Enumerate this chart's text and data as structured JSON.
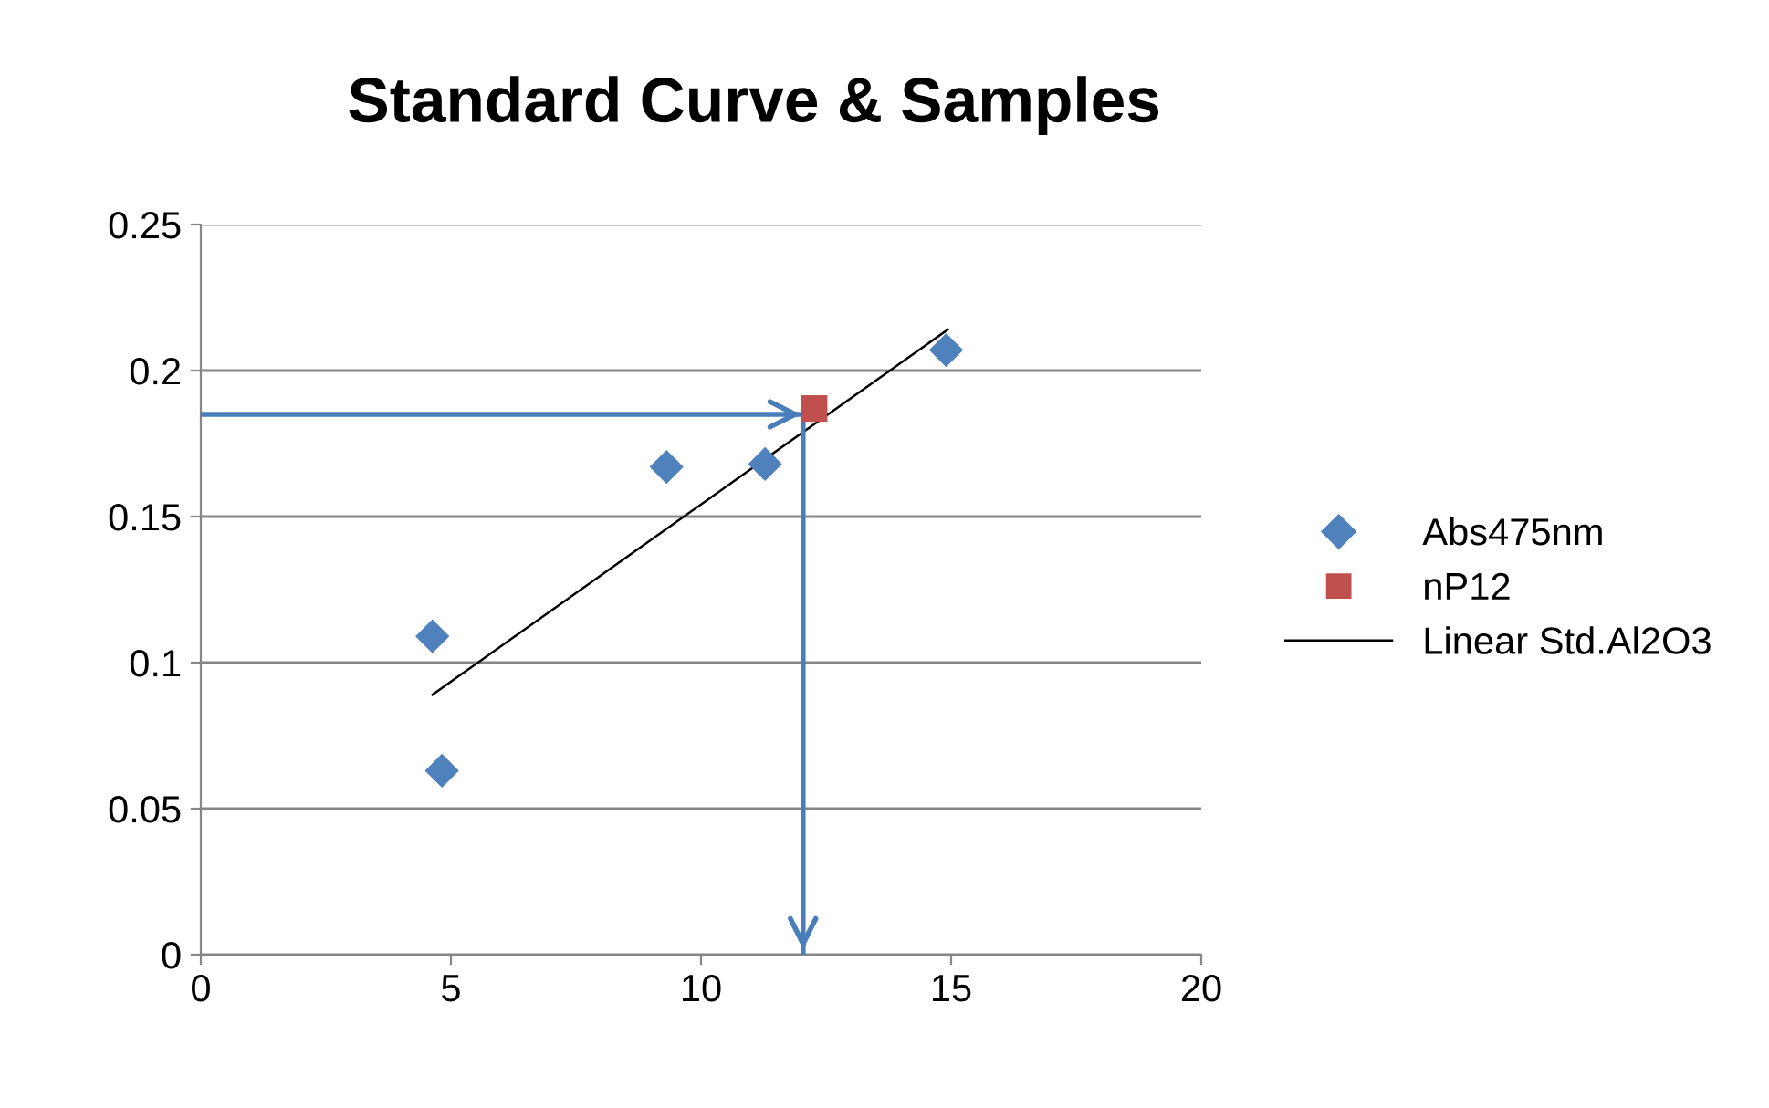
{
  "chart_data": {
    "type": "scatter",
    "title": "Standard Curve & Samples",
    "series": [
      {
        "name": "Abs475nm",
        "color": "#4f81bd",
        "marker": "diamond",
        "x": [
          4.63,
          4.82,
          9.31,
          11.28,
          14.9
        ],
        "values": [
          0.109,
          0.063,
          0.167,
          0.168,
          0.207
        ]
      },
      {
        "name": "nP12",
        "color": "#c0504d",
        "marker": "square",
        "x": [
          12.26
        ],
        "values": [
          0.187
        ]
      },
      {
        "name": "Linear Std.Al2O3",
        "type": "line",
        "color": "#000000",
        "marker": "none",
        "x": [
          4.63,
          14.93
        ],
        "values": [
          0.089,
          0.214
        ]
      },
      {
        "type": "line",
        "color": "#4a7ebb",
        "marker": "none",
        "x": [
          0,
          12.1
        ],
        "values": [
          0.185,
          0.185
        ]
      },
      {
        "type": "line",
        "color": "#4a7ebb",
        "marker": "none",
        "x": [
          12.04,
          12.04
        ],
        "values": [
          0.185,
          0
        ]
      }
    ],
    "xlim": [
      0,
      20
    ],
    "xticks": [
      0,
      5,
      10,
      15,
      20
    ],
    "ylim": [
      0,
      0.25
    ],
    "yticks": [
      0,
      0.05,
      0.1,
      0.15,
      0.2,
      0.25
    ],
    "grid": "y",
    "legend": "right"
  }
}
